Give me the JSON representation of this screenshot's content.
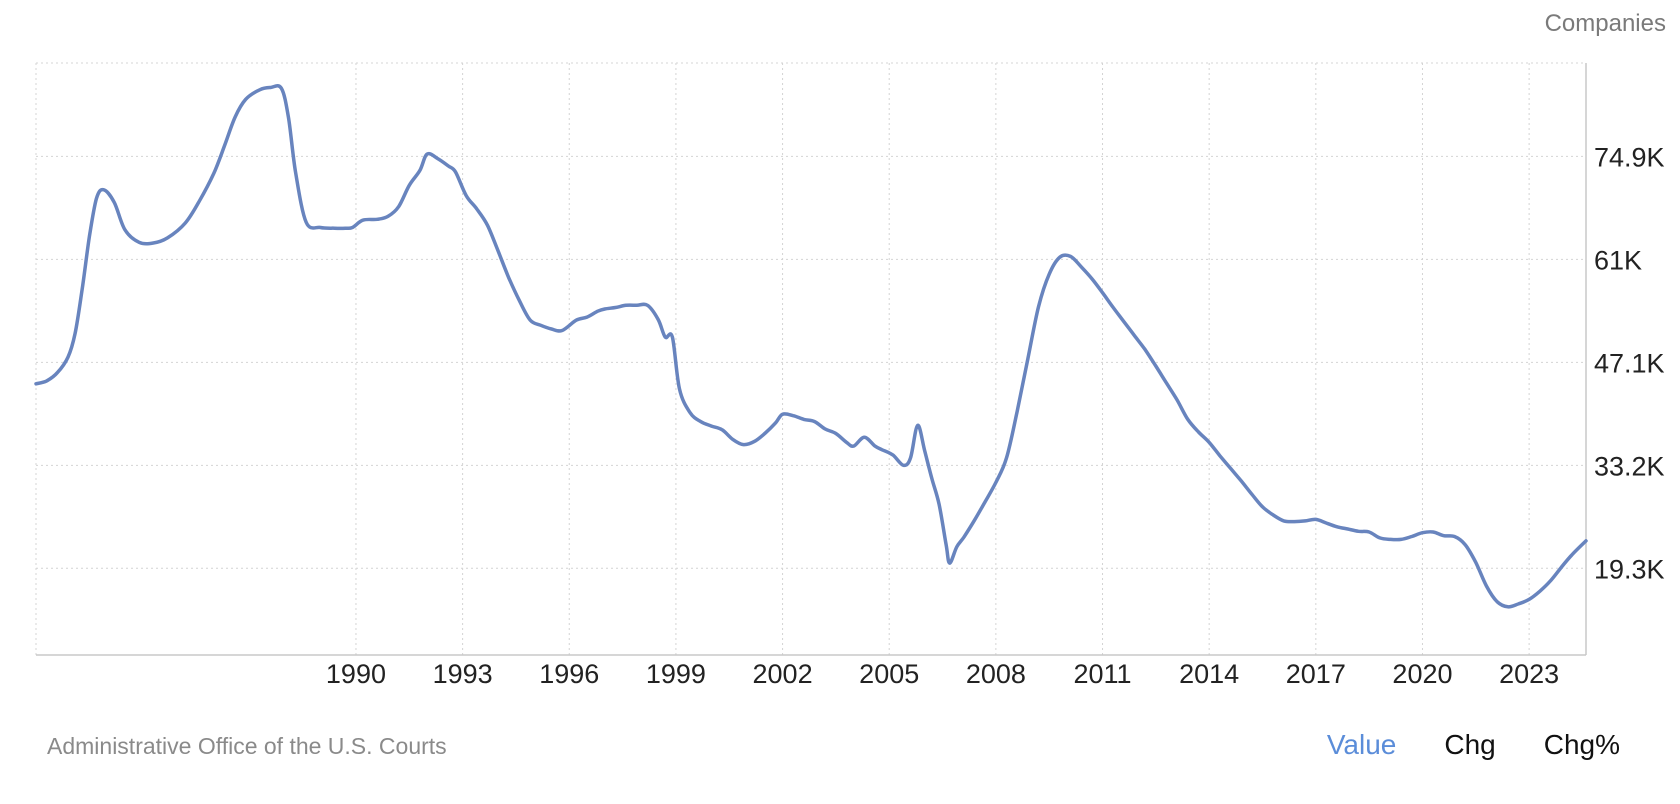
{
  "unit_label": "Companies",
  "source": "Administrative Office of the U.S. Courts",
  "view_tabs": [
    {
      "label": "Value",
      "active": true
    },
    {
      "label": "Chg",
      "active": false
    },
    {
      "label": "Chg%",
      "active": false
    }
  ],
  "colors": {
    "line": "#6884be",
    "grid": "#d4d4d4",
    "axis": "#c8c8c8",
    "active_tab": "#5b8dd9"
  },
  "chart_data": {
    "type": "line",
    "title": "",
    "xlabel": "",
    "ylabel": "Companies",
    "xlim": [
      1981.0,
      2024.6
    ],
    "ylim": [
      7600,
      87500
    ],
    "x_ticks": [
      1990,
      1993,
      1996,
      1999,
      2002,
      2005,
      2008,
      2011,
      2014,
      2017,
      2020,
      2023
    ],
    "y_ticks": [
      19300,
      33200,
      47100,
      61000,
      74900
    ],
    "y_tick_labels": [
      "19.3K",
      "33.2K",
      "47.1K",
      "61K",
      "74.9K"
    ],
    "grid": true,
    "legend": "none",
    "series": [
      {
        "name": "",
        "x": [
          1981.0,
          1981.3,
          1981.6,
          1981.9,
          1982.1,
          1982.3,
          1982.5,
          1982.7,
          1982.9,
          1983.2,
          1983.5,
          1983.9,
          1984.3,
          1984.7,
          1985.2,
          1985.6,
          1986.0,
          1986.3,
          1986.6,
          1986.9,
          1987.3,
          1987.6,
          1987.9,
          1988.1,
          1988.3,
          1988.6,
          1989.0,
          1989.4,
          1989.7,
          1989.9,
          1990.2,
          1990.6,
          1990.9,
          1991.2,
          1991.5,
          1991.8,
          1992.0,
          1992.3,
          1992.6,
          1992.8,
          1993.1,
          1993.4,
          1993.7,
          1994.0,
          1994.3,
          1994.6,
          1994.9,
          1995.2,
          1995.5,
          1995.8,
          1996.2,
          1996.5,
          1996.8,
          1997.0,
          1997.3,
          1997.6,
          1997.9,
          1998.2,
          1998.5,
          1998.7,
          1998.9,
          1999.1,
          1999.4,
          1999.7,
          2000.0,
          2000.3,
          2000.6,
          2000.9,
          2001.2,
          2001.5,
          2001.8,
          2002.0,
          2002.3,
          2002.6,
          2002.9,
          2003.2,
          2003.5,
          2003.8,
          2004.0,
          2004.3,
          2004.6,
          2004.8,
          2005.1,
          2005.4,
          2005.6,
          2005.8,
          2006.0,
          2006.2,
          2006.4,
          2006.6,
          2006.7,
          2006.9,
          2007.1,
          2007.4,
          2007.7,
          2008.0,
          2008.3,
          2008.6,
          2008.9,
          2009.2,
          2009.5,
          2009.8,
          2010.1,
          2010.4,
          2010.7,
          2011.0,
          2011.3,
          2011.6,
          2011.9,
          2012.2,
          2012.5,
          2012.8,
          2013.1,
          2013.4,
          2013.7,
          2014.0,
          2014.3,
          2014.6,
          2014.9,
          2015.2,
          2015.5,
          2015.8,
          2016.1,
          2016.4,
          2016.7,
          2017.0,
          2017.3,
          2017.6,
          2017.9,
          2018.2,
          2018.5,
          2018.8,
          2019.1,
          2019.4,
          2019.7,
          2020.0,
          2020.3,
          2020.6,
          2020.9,
          2021.2,
          2021.5,
          2021.8,
          2022.1,
          2022.4,
          2022.7,
          2023.0,
          2023.3,
          2023.6,
          2023.9,
          2024.2,
          2024.6
        ],
        "values": [
          44200,
          44600,
          45700,
          47800,
          51000,
          57000,
          64000,
          69200,
          70400,
          68700,
          65000,
          63300,
          63200,
          63900,
          65900,
          68900,
          72600,
          76300,
          80200,
          82600,
          83900,
          84200,
          84100,
          80200,
          72800,
          66000,
          65300,
          65200,
          65200,
          65300,
          66300,
          66400,
          66800,
          68100,
          71000,
          73000,
          75200,
          74600,
          73600,
          72800,
          69600,
          67800,
          65600,
          62100,
          58500,
          55400,
          52800,
          52100,
          51600,
          51400,
          52800,
          53200,
          54000,
          54300,
          54500,
          54800,
          54800,
          54800,
          52900,
          50500,
          50500,
          43500,
          40300,
          39100,
          38500,
          38000,
          36700,
          36000,
          36400,
          37500,
          38900,
          40100,
          39900,
          39400,
          39100,
          38100,
          37500,
          36300,
          35800,
          37000,
          35800,
          35300,
          34600,
          33200,
          34200,
          38600,
          35100,
          31400,
          28000,
          22500,
          20000,
          22200,
          23500,
          25800,
          28300,
          30900,
          34200,
          40500,
          47600,
          54600,
          59000,
          61300,
          61400,
          60000,
          58400,
          56500,
          54500,
          52600,
          50700,
          48800,
          46600,
          44300,
          42000,
          39400,
          37700,
          36300,
          34500,
          32800,
          31100,
          29300,
          27600,
          26500,
          25700,
          25600,
          25700,
          25900,
          25400,
          24900,
          24600,
          24300,
          24200,
          23400,
          23200,
          23200,
          23600,
          24100,
          24200,
          23700,
          23600,
          22500,
          20100,
          16900,
          14800,
          14100,
          14500,
          15100,
          16200,
          17600,
          19400,
          21100,
          23000
        ]
      }
    ]
  }
}
